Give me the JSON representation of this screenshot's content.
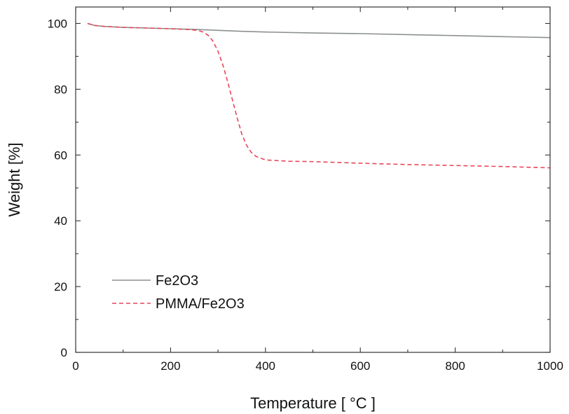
{
  "chart_data": {
    "type": "line",
    "xlabel": "Temperature [ °C ]",
    "ylabel": "Weight [%]",
    "xlim": [
      0,
      1000
    ],
    "ylim": [
      0,
      105
    ],
    "xticks": [
      0,
      200,
      400,
      600,
      800,
      1000
    ],
    "yticks": [
      0,
      20,
      40,
      60,
      80,
      100
    ],
    "grid": false,
    "legend_position": "bottom-left",
    "series": [
      {
        "name": "Fe2O3",
        "color": "#8c9090",
        "style": "solid",
        "x": [
          25,
          40,
          60,
          100,
          150,
          200,
          250,
          300,
          350,
          400,
          500,
          600,
          700,
          800,
          900,
          1000
        ],
        "y": [
          100,
          99.4,
          99.1,
          98.8,
          98.6,
          98.4,
          98.2,
          97.9,
          97.6,
          97.4,
          97.1,
          96.9,
          96.6,
          96.3,
          96.0,
          95.7
        ]
      },
      {
        "name": "PMMA/Fe2O3",
        "color": "#e8475a",
        "style": "dashed",
        "x": [
          25,
          40,
          60,
          100,
          150,
          200,
          230,
          250,
          260,
          270,
          280,
          290,
          300,
          310,
          320,
          330,
          340,
          350,
          360,
          370,
          380,
          400,
          450,
          500,
          600,
          700,
          800,
          900,
          1000
        ],
        "y": [
          100,
          99.4,
          99.1,
          98.8,
          98.6,
          98.4,
          98.2,
          98.0,
          97.8,
          97.3,
          96.3,
          94.5,
          91.5,
          87.5,
          82.5,
          77.0,
          71.5,
          66.5,
          63.0,
          60.8,
          59.6,
          58.5,
          58.1,
          58.0,
          57.5,
          57.1,
          56.8,
          56.5,
          56.1
        ]
      }
    ]
  }
}
